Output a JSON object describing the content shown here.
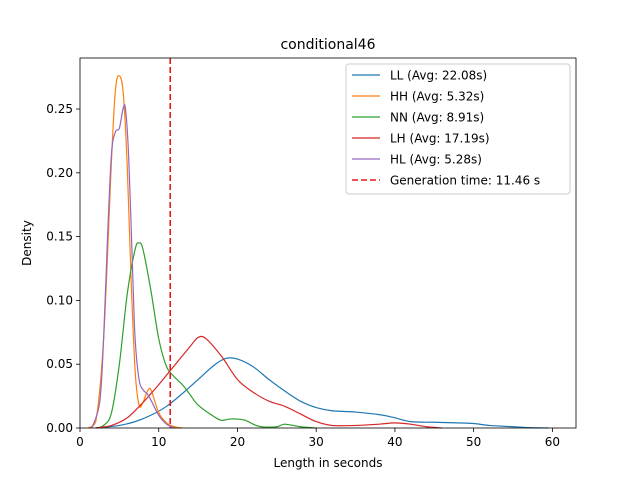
{
  "chart_data": {
    "type": "line",
    "title": "conditional46",
    "xlabel": "Length in seconds",
    "ylabel": "Density",
    "xlim": [
      0,
      63
    ],
    "ylim": [
      0,
      0.29
    ],
    "xticks": [
      0,
      10,
      20,
      30,
      40,
      50,
      60
    ],
    "xtick_labels": [
      "0",
      "10",
      "20",
      "30",
      "40",
      "50",
      "60"
    ],
    "yticks": [
      0,
      0.05,
      0.1,
      0.15,
      0.2,
      0.25
    ],
    "ytick_labels": [
      "0.00",
      "0.05",
      "0.10",
      "0.15",
      "0.20",
      "0.25"
    ],
    "grid": false,
    "legend_position": "top-right",
    "series": [
      {
        "name": "LL (Avg: 22.08s)",
        "color": "#1f77b4",
        "x": [
          3,
          5,
          7,
          9,
          11,
          13,
          15,
          17,
          18.5,
          20,
          22,
          24,
          26,
          28,
          30,
          32,
          35,
          38,
          40,
          42,
          45,
          48,
          50,
          52,
          55,
          57,
          59.5
        ],
        "y": [
          0.0005,
          0.002,
          0.005,
          0.01,
          0.017,
          0.027,
          0.038,
          0.049,
          0.0545,
          0.054,
          0.048,
          0.038,
          0.029,
          0.021,
          0.016,
          0.0135,
          0.0125,
          0.0105,
          0.008,
          0.005,
          0.0045,
          0.004,
          0.0035,
          0.002,
          0.001,
          0.0003,
          0.0
        ]
      },
      {
        "name": "HH (Avg: 5.32s)",
        "color": "#ff7f0e",
        "x": [
          1,
          2,
          3,
          4,
          4.5,
          5,
          5.5,
          6,
          6.5,
          7,
          7.5,
          8,
          8.5,
          9,
          10,
          11,
          12,
          13
        ],
        "y": [
          0.0,
          0.005,
          0.07,
          0.21,
          0.265,
          0.276,
          0.262,
          0.205,
          0.115,
          0.045,
          0.018,
          0.02,
          0.028,
          0.03,
          0.012,
          0.004,
          0.001,
          0.0
        ]
      },
      {
        "name": "NN (Avg: 8.91s)",
        "color": "#2ca02c",
        "x": [
          2,
          3,
          4,
          5,
          6,
          7,
          7.5,
          8,
          9,
          10,
          11,
          12,
          13,
          14,
          15,
          17,
          18,
          19,
          20,
          21,
          22,
          23,
          25,
          26,
          28,
          30
        ],
        "y": [
          0.0,
          0.002,
          0.012,
          0.05,
          0.105,
          0.14,
          0.145,
          0.14,
          0.108,
          0.07,
          0.048,
          0.04,
          0.034,
          0.026,
          0.018,
          0.009,
          0.006,
          0.007,
          0.007,
          0.006,
          0.003,
          0.001,
          0.001,
          0.003,
          0.001,
          0.0
        ]
      },
      {
        "name": "LH (Avg: 17.19s)",
        "color": "#d62728",
        "x": [
          2,
          4,
          6,
          8,
          10,
          12,
          14,
          15,
          16,
          18,
          20,
          22,
          24,
          26,
          28,
          30,
          32,
          35,
          38,
          40,
          42,
          44,
          46
        ],
        "y": [
          0.0,
          0.002,
          0.008,
          0.02,
          0.034,
          0.049,
          0.064,
          0.071,
          0.07,
          0.056,
          0.038,
          0.028,
          0.021,
          0.017,
          0.011,
          0.005,
          0.002,
          0.002,
          0.003,
          0.004,
          0.003,
          0.001,
          0.0
        ]
      },
      {
        "name": "HL (Avg: 5.28s)",
        "color": "#9467bd",
        "x": [
          1.5,
          2.5,
          3,
          3.5,
          4,
          4.5,
          5,
          5.5,
          5.8,
          6.2,
          6.7,
          7,
          7.5,
          8,
          8.5,
          9,
          10,
          11,
          12
        ],
        "y": [
          0.0,
          0.02,
          0.07,
          0.15,
          0.215,
          0.232,
          0.235,
          0.251,
          0.249,
          0.21,
          0.12,
          0.07,
          0.038,
          0.03,
          0.027,
          0.022,
          0.01,
          0.003,
          0.0
        ]
      }
    ],
    "vline": {
      "name": "Generation time: 11.46 s",
      "x": 11.46,
      "color": "#e31a1c",
      "style": "dashed"
    }
  }
}
